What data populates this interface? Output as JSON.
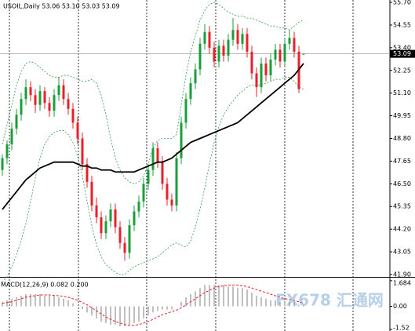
{
  "chart_data": {
    "type": "candlestick",
    "title": "USOIL,Daily 53.06 53.10 53.03 53.09",
    "ohlc": [
      [
        47.2,
        48.0,
        46.9,
        47.8
      ],
      [
        47.8,
        48.7,
        47.5,
        48.5
      ],
      [
        48.5,
        49.6,
        48.2,
        49.3
      ],
      [
        49.3,
        50.3,
        49.0,
        50.0
      ],
      [
        50.0,
        51.1,
        49.7,
        50.8
      ],
      [
        50.8,
        51.8,
        50.5,
        51.4
      ],
      [
        51.4,
        51.7,
        50.7,
        51.0
      ],
      [
        51.0,
        51.3,
        50.1,
        50.5
      ],
      [
        50.5,
        51.5,
        50.2,
        51.2
      ],
      [
        51.2,
        51.4,
        50.3,
        50.6
      ],
      [
        50.6,
        50.9,
        49.9,
        50.2
      ],
      [
        50.2,
        51.3,
        49.9,
        51.0
      ],
      [
        51.0,
        51.9,
        50.7,
        51.5
      ],
      [
        51.5,
        51.8,
        50.5,
        50.8
      ],
      [
        50.8,
        51.1,
        50.0,
        50.3
      ],
      [
        50.3,
        50.6,
        49.3,
        49.6
      ],
      [
        49.6,
        49.9,
        48.5,
        48.8
      ],
      [
        48.8,
        49.1,
        47.2,
        47.5
      ],
      [
        47.5,
        47.8,
        46.3,
        46.6
      ],
      [
        46.6,
        46.9,
        45.1,
        45.4
      ],
      [
        45.4,
        45.8,
        44.5,
        44.8
      ],
      [
        44.8,
        45.1,
        43.7,
        44.0
      ],
      [
        44.0,
        44.9,
        43.7,
        44.6
      ],
      [
        44.6,
        45.5,
        44.3,
        45.2
      ],
      [
        45.2,
        45.5,
        44.0,
        44.3
      ],
      [
        44.3,
        44.6,
        43.2,
        43.5
      ],
      [
        43.5,
        43.8,
        42.6,
        43.0
      ],
      [
        43.0,
        44.7,
        42.7,
        44.4
      ],
      [
        44.4,
        45.4,
        44.1,
        45.1
      ],
      [
        45.1,
        45.9,
        44.8,
        45.6
      ],
      [
        45.6,
        46.8,
        45.3,
        46.5
      ],
      [
        46.5,
        47.5,
        46.2,
        47.2
      ],
      [
        47.2,
        48.6,
        46.9,
        48.3
      ],
      [
        48.3,
        48.6,
        47.3,
        47.6
      ],
      [
        47.6,
        47.9,
        46.2,
        46.5
      ],
      [
        46.5,
        46.8,
        45.4,
        45.7
      ],
      [
        45.7,
        46.0,
        45.1,
        45.4
      ],
      [
        45.4,
        48.1,
        45.1,
        47.8
      ],
      [
        47.8,
        49.9,
        47.5,
        49.6
      ],
      [
        49.6,
        51.1,
        49.3,
        50.8
      ],
      [
        50.8,
        51.9,
        50.5,
        51.6
      ],
      [
        51.6,
        52.6,
        51.3,
        52.3
      ],
      [
        52.3,
        53.9,
        52.0,
        53.6
      ],
      [
        53.6,
        54.6,
        53.3,
        54.2
      ],
      [
        54.2,
        54.5,
        53.1,
        53.4
      ],
      [
        53.4,
        53.7,
        52.4,
        52.7
      ],
      [
        52.7,
        53.8,
        52.4,
        53.5
      ],
      [
        53.5,
        53.8,
        52.7,
        53.0
      ],
      [
        53.0,
        54.1,
        52.7,
        53.8
      ],
      [
        53.8,
        54.9,
        53.5,
        54.3
      ],
      [
        54.3,
        54.6,
        53.3,
        53.6
      ],
      [
        53.6,
        54.4,
        53.3,
        54.1
      ],
      [
        54.1,
        54.4,
        52.9,
        53.2
      ],
      [
        53.2,
        53.5,
        51.8,
        52.1
      ],
      [
        52.1,
        52.4,
        50.9,
        51.4
      ],
      [
        51.4,
        52.9,
        51.1,
        52.6
      ],
      [
        52.6,
        52.9,
        51.7,
        52.0
      ],
      [
        52.0,
        53.1,
        51.7,
        52.8
      ],
      [
        52.8,
        53.6,
        52.5,
        53.3
      ],
      [
        53.3,
        53.6,
        52.4,
        52.7
      ],
      [
        52.7,
        53.9,
        52.4,
        53.6
      ],
      [
        53.6,
        54.3,
        53.3,
        53.9
      ],
      [
        53.9,
        54.2,
        52.9,
        53.2
      ],
      [
        53.2,
        53.5,
        51.1,
        51.3
      ],
      [
        53.06,
        53.1,
        53.03,
        53.09
      ]
    ],
    "up_color": "#1a9e3a",
    "down_color": "#e8202a",
    "ma": [
      45.2,
      45.5,
      45.8,
      46.1,
      46.4,
      46.7,
      46.9,
      47.1,
      47.3,
      47.4,
      47.5,
      47.6,
      47.6,
      47.6,
      47.6,
      47.6,
      47.5,
      47.4,
      47.4,
      47.3,
      47.3,
      47.2,
      47.2,
      47.2,
      47.1,
      47.1,
      47.1,
      47.1,
      47.1,
      47.2,
      47.3,
      47.4,
      47.5,
      47.6,
      47.6,
      47.7,
      47.8,
      48.0,
      48.2,
      48.4,
      48.6,
      48.7,
      48.8,
      48.9,
      49.0,
      49.1,
      49.2,
      49.3,
      49.4,
      49.5,
      49.6,
      49.8,
      50.0,
      50.2,
      50.4,
      50.6,
      50.8,
      51.0,
      51.2,
      51.4,
      51.6,
      51.8,
      52.0,
      52.3,
      52.6
    ],
    "ma_color": "#000000",
    "band_upper": [
      48.5,
      49.5,
      50.5,
      51.5,
      52.2,
      52.6,
      52.7,
      52.6,
      52.4,
      52.2,
      52.0,
      51.9,
      51.9,
      52.0,
      52.0,
      51.9,
      51.8,
      51.7,
      51.7,
      51.8,
      51.6,
      51.0,
      50.0,
      48.8,
      47.8,
      47.2,
      46.8,
      46.6,
      46.5,
      46.6,
      46.9,
      47.5,
      48.3,
      48.7,
      48.8,
      48.8,
      48.8,
      49.0,
      50.5,
      52.0,
      53.2,
      54.0,
      54.8,
      55.3,
      55.6,
      55.7,
      55.6,
      55.4,
      55.2,
      55.1,
      55.0,
      55.0,
      54.9,
      54.9,
      54.8,
      54.7,
      54.6,
      54.5,
      54.5,
      54.4,
      54.4,
      54.3,
      54.5,
      54.7,
      54.8
    ],
    "band_lower": [
      41.5,
      41.8,
      42.3,
      42.9,
      43.6,
      44.5,
      45.6,
      46.8,
      47.8,
      48.5,
      48.9,
      49.1,
      49.2,
      49.2,
      49.0,
      48.6,
      47.9,
      46.9,
      45.6,
      44.4,
      43.4,
      42.8,
      42.4,
      42.2,
      42.0,
      41.9,
      41.9,
      42.1,
      42.3,
      42.4,
      42.5,
      42.6,
      42.7,
      42.8,
      43.0,
      43.2,
      43.4,
      43.5,
      43.4,
      43.3,
      43.6,
      44.3,
      45.2,
      46.3,
      47.5,
      48.6,
      49.4,
      50.0,
      50.4,
      50.7,
      51.0,
      51.2,
      51.4,
      51.5,
      51.5,
      51.5,
      51.6,
      51.7,
      51.8,
      51.8,
      51.9,
      51.9,
      51.7,
      51.4,
      51.3
    ],
    "band_color": "#2e9e4a",
    "ylim": [
      41.82,
      55.82
    ],
    "yticks": [
      {
        "value": 55.7,
        "label": "55.70"
      },
      54.55,
      {
        "value": 53.4,
        "label": "53.40"
      },
      52.25,
      {
        "value": 51.1,
        "label": "51.10"
      },
      49.95,
      {
        "value": 48.8,
        "label": "48.80"
      },
      47.65,
      {
        "value": 46.5,
        "label": "46.50"
      },
      45.35,
      {
        "value": 44.2,
        "label": "44.20"
      },
      43.05,
      {
        "value": 41.9,
        "label": "41.90"
      }
    ],
    "macd": {
      "title": "MACD(12,26,9) 0.082 0.200",
      "histogram": [
        0.3,
        0.4,
        0.5,
        0.6,
        0.7,
        0.8,
        0.8,
        0.8,
        0.8,
        0.7,
        0.7,
        0.7,
        0.6,
        0.5,
        0.4,
        0.2,
        0.0,
        -0.2,
        -0.4,
        -0.6,
        -0.8,
        -1.0,
        -1.1,
        -1.2,
        -1.2,
        -1.3,
        -1.3,
        -1.2,
        -1.1,
        -1.0,
        -0.8,
        -0.6,
        -0.4,
        -0.3,
        -0.2,
        -0.2,
        -0.2,
        0.0,
        0.3,
        0.6,
        0.8,
        1.0,
        1.2,
        1.4,
        1.4,
        1.4,
        1.4,
        1.4,
        1.3,
        1.3,
        1.2,
        1.2,
        1.1,
        0.9,
        0.7,
        0.6,
        0.5,
        0.4,
        0.4,
        0.3,
        0.3,
        0.3,
        0.3,
        0.1,
        0.082
      ],
      "signal": [
        0.2,
        0.25,
        0.3,
        0.4,
        0.5,
        0.6,
        0.65,
        0.7,
        0.75,
        0.75,
        0.75,
        0.72,
        0.7,
        0.65,
        0.6,
        0.5,
        0.4,
        0.25,
        0.1,
        -0.1,
        -0.3,
        -0.5,
        -0.7,
        -0.85,
        -1.0,
        -1.1,
        -1.2,
        -1.25,
        -1.25,
        -1.2,
        -1.1,
        -1.0,
        -0.85,
        -0.7,
        -0.55,
        -0.45,
        -0.35,
        -0.25,
        -0.1,
        0.1,
        0.3,
        0.5,
        0.7,
        0.9,
        1.05,
        1.2,
        1.3,
        1.35,
        1.4,
        1.4,
        1.4,
        1.35,
        1.3,
        1.2,
        1.1,
        1.0,
        0.9,
        0.8,
        0.7,
        0.6,
        0.5,
        0.45,
        0.4,
        0.3,
        0.2
      ],
      "hist_color": "#c0c0c0",
      "signal_color": "#e8202a",
      "ylim": [
        -1.62,
        1.78
      ],
      "yticks": [
        1.684,
        {
          "value": 0,
          "label": "0.00"
        },
        -1.52
      ]
    },
    "watermark": "FX678 汇通网"
  }
}
